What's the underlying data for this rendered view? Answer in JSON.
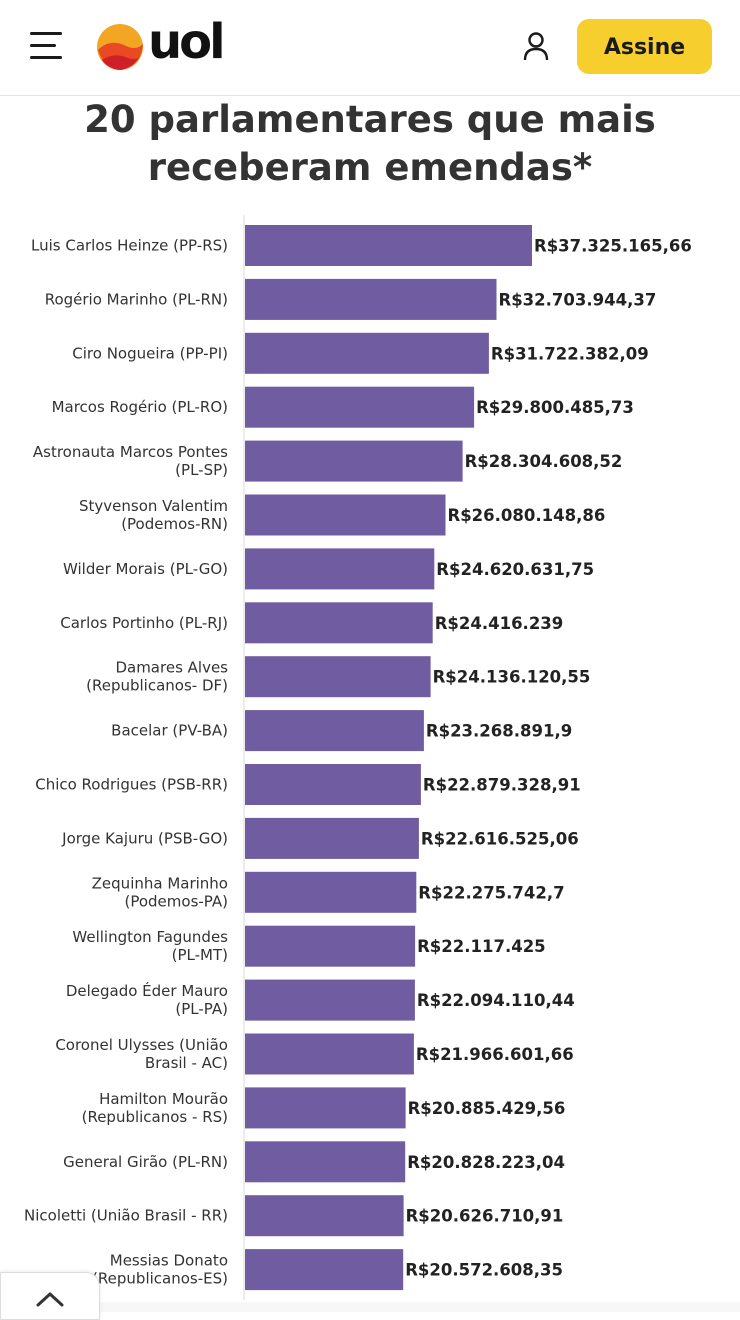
{
  "header": {
    "logo_text": "uol",
    "subscribe_label": "Assine",
    "icons": {
      "menu": "hamburger-menu-icon",
      "logo": "uol-logo-icon",
      "user": "user-icon"
    },
    "subscribe_color": "#f6cf2f"
  },
  "title": {
    "line1": "20 parlamentares que mais",
    "line2": "receberam emendas*"
  },
  "chart_data": {
    "type": "bar",
    "orientation": "horizontal",
    "bar_color": "#705ca0",
    "categories": [
      [
        "Luis Carlos Heinze (PP-RS)"
      ],
      [
        "Rogério Marinho (PL-RN)"
      ],
      [
        "Ciro Nogueira (PP-PI)"
      ],
      [
        "Marcos Rogério (PL-RO)"
      ],
      [
        "Astronauta Marcos Pontes",
        "(PL-SP)"
      ],
      [
        "Styvenson Valentim",
        "(Podemos-RN)"
      ],
      [
        "Wilder Morais (PL-GO)"
      ],
      [
        "Carlos Portinho (PL-RJ)"
      ],
      [
        "Damares Alves",
        "(Republicanos- DF)"
      ],
      [
        "Bacelar (PV-BA)"
      ],
      [
        "Chico Rodrigues (PSB-RR)"
      ],
      [
        "Jorge Kajuru (PSB-GO)"
      ],
      [
        "Zequinha Marinho",
        "(Podemos-PA)"
      ],
      [
        "Wellington Fagundes",
        "(PL-MT)"
      ],
      [
        "Delegado Éder Mauro",
        "(PL-PA)"
      ],
      [
        "Coronel Ulysses (União",
        "Brasil - AC)"
      ],
      [
        "Hamilton Mourão",
        "(Republicanos - RS)"
      ],
      [
        "General Girão (PL-RN)"
      ],
      [
        "Nicoletti (União Brasil - RR)"
      ],
      [
        "Messias Donato",
        "(Republicanos-ES)"
      ]
    ],
    "values": [
      37325165.66,
      32703944.37,
      31722382.09,
      29800485.73,
      28304608.52,
      26080148.86,
      24620631.75,
      24416239,
      24136120.55,
      23268891.9,
      22879328.91,
      22616525.06,
      22275742.7,
      22117425,
      22094110.44,
      21966601.66,
      20885429.56,
      20828223.04,
      20626710.91,
      20572608.35
    ],
    "value_labels": [
      "R$37.325.165,66",
      "R$32.703.944,37",
      "R$31.722.382,09",
      "R$29.800.485,73",
      "R$28.304.608,52",
      "R$26.080.148,86",
      "R$24.620.631,75",
      "R$24.416.239",
      "R$24.136.120,55",
      "R$23.268.891,9",
      "R$22.879.328,91",
      "R$22.616.525,06",
      "R$22.275.742,7",
      "R$22.117.425",
      "R$22.094.110,44",
      "R$21.966.601,66",
      "R$20.885.429,56",
      "R$20.828.223,04",
      "R$20.626.710,91",
      "R$20.572.608,35"
    ],
    "xlim": [
      0,
      37325165.66
    ]
  },
  "footer": {
    "scroll_icon": "chevron-up-icon"
  }
}
